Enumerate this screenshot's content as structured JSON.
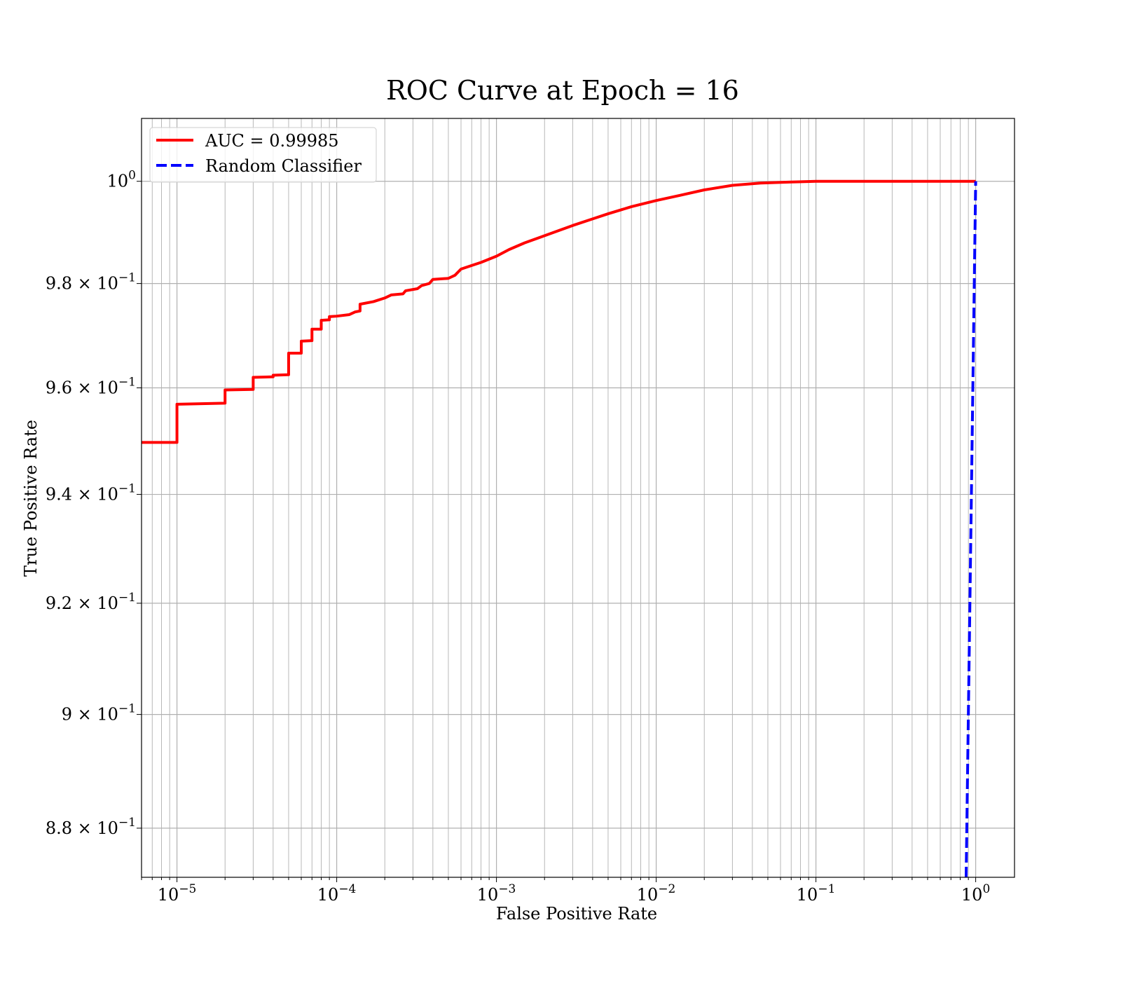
{
  "chart_data": {
    "type": "line",
    "title": "ROC Curve at Epoch = 16",
    "xlabel": "False Positive Rate",
    "ylabel": "True Positive Rate",
    "xscale": "log",
    "yscale": "log",
    "xlim": [
      6e-06,
      1.75
    ],
    "ylim": [
      0.8715,
      1.0125
    ],
    "grid": "both (major and minor)",
    "legend_position": "upper left",
    "x_ticks": [
      {
        "value": 1e-05,
        "base": "10",
        "exp": "−5"
      },
      {
        "value": 0.0001,
        "base": "10",
        "exp": "−4"
      },
      {
        "value": 0.001,
        "base": "10",
        "exp": "−3"
      },
      {
        "value": 0.01,
        "base": "10",
        "exp": "−2"
      },
      {
        "value": 0.1,
        "base": "10",
        "exp": "−1"
      },
      {
        "value": 1,
        "base": "10",
        "exp": "0"
      }
    ],
    "y_ticks": [
      {
        "value": 0.88,
        "base": "8.8 × 10",
        "exp": "−1"
      },
      {
        "value": 0.9,
        "base": "9 × 10",
        "exp": "−1"
      },
      {
        "value": 0.92,
        "base": "9.2 × 10",
        "exp": "−1"
      },
      {
        "value": 0.94,
        "base": "9.4 × 10",
        "exp": "−1"
      },
      {
        "value": 0.96,
        "base": "9.6 × 10",
        "exp": "−1"
      },
      {
        "value": 0.98,
        "base": "9.8 × 10",
        "exp": "−1"
      },
      {
        "value": 1.0,
        "base": "10",
        "exp": "0"
      }
    ],
    "series": [
      {
        "name": "AUC = 0.99985",
        "color": "#ff0000",
        "style": "solid",
        "points": [
          [
            6e-06,
            0.9497
          ],
          [
            1e-05,
            0.9497
          ],
          [
            1e-05,
            0.9569
          ],
          [
            2e-05,
            0.9571
          ],
          [
            2e-05,
            0.9596
          ],
          [
            3e-05,
            0.9597
          ],
          [
            3e-05,
            0.962
          ],
          [
            4e-05,
            0.9621
          ],
          [
            4e-05,
            0.9624
          ],
          [
            5e-05,
            0.9625
          ],
          [
            5e-05,
            0.9666
          ],
          [
            6e-05,
            0.9666
          ],
          [
            6e-05,
            0.9689
          ],
          [
            7e-05,
            0.969
          ],
          [
            7e-05,
            0.9712
          ],
          [
            8e-05,
            0.9712
          ],
          [
            8e-05,
            0.9729
          ],
          [
            9e-05,
            0.973
          ],
          [
            9e-05,
            0.9736
          ],
          [
            0.0001,
            0.9737
          ],
          [
            0.00012,
            0.974
          ],
          [
            0.00013,
            0.9745
          ],
          [
            0.00014,
            0.9747
          ],
          [
            0.00014,
            0.976
          ],
          [
            0.00017,
            0.9765
          ],
          [
            0.0002,
            0.9772
          ],
          [
            0.00022,
            0.9778
          ],
          [
            0.00026,
            0.978
          ],
          [
            0.00027,
            0.9786
          ],
          [
            0.00032,
            0.979
          ],
          [
            0.00034,
            0.9796
          ],
          [
            0.00038,
            0.98
          ],
          [
            0.0004,
            0.9808
          ],
          [
            0.0005,
            0.981
          ],
          [
            0.00055,
            0.9816
          ],
          [
            0.0006,
            0.9828
          ],
          [
            0.0007,
            0.9835
          ],
          [
            0.0008,
            0.9841
          ],
          [
            0.001,
            0.9853
          ],
          [
            0.0012,
            0.9866
          ],
          [
            0.0015,
            0.9879
          ],
          [
            0.002,
            0.9893
          ],
          [
            0.0025,
            0.9904
          ],
          [
            0.003,
            0.9913
          ],
          [
            0.004,
            0.9926
          ],
          [
            0.005,
            0.9936
          ],
          [
            0.007,
            0.995
          ],
          [
            0.01,
            0.9962
          ],
          [
            0.014,
            0.9972
          ],
          [
            0.02,
            0.9983
          ],
          [
            0.03,
            0.9992
          ],
          [
            0.045,
            0.99965
          ],
          [
            0.07,
            0.99985
          ],
          [
            0.1,
            1.0
          ],
          [
            1.0,
            1.0
          ]
        ]
      },
      {
        "name": "Random Classifier",
        "color": "#0000ff",
        "style": "dashed",
        "points": [
          [
            0.8715,
            0.8715
          ],
          [
            0.9,
            0.9
          ],
          [
            0.94,
            0.94
          ],
          [
            0.97,
            0.97
          ],
          [
            1.0,
            1.0
          ]
        ]
      }
    ]
  }
}
